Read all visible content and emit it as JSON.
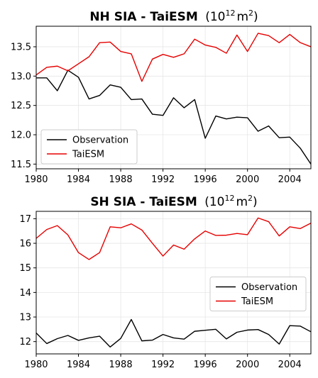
{
  "chart_data": [
    {
      "type": "line",
      "title_main": "NH SIA - TaiESM",
      "title_unit_base": "(10",
      "title_unit_exp": "12",
      "title_unit_rest": "m",
      "title_unit_sq": "2",
      "title_unit_close": ")",
      "x": [
        1980,
        1981,
        1982,
        1983,
        1984,
        1985,
        1986,
        1987,
        1988,
        1989,
        1990,
        1991,
        1992,
        1993,
        1994,
        1995,
        1996,
        1997,
        1998,
        1999,
        2000,
        2001,
        2002,
        2003,
        2004,
        2005,
        2006
      ],
      "xlim": [
        1980,
        2006
      ],
      "ylim": [
        11.42,
        13.85
      ],
      "xticks": [
        1980,
        1984,
        1988,
        1992,
        1996,
        2000,
        2004
      ],
      "yticks": [
        11.5,
        12.0,
        12.5,
        13.0,
        13.5
      ],
      "ytick_labels": [
        "11.5",
        "12.0",
        "12.5",
        "13.0",
        "13.5"
      ],
      "grid": true,
      "legend_position": "lower-left",
      "series": [
        {
          "name": "Observation",
          "color": "#000000",
          "values": [
            12.97,
            12.97,
            12.75,
            13.1,
            12.98,
            12.61,
            12.67,
            12.85,
            12.81,
            12.6,
            12.61,
            12.35,
            12.33,
            12.63,
            12.46,
            12.6,
            11.94,
            12.32,
            12.27,
            12.3,
            12.29,
            12.06,
            12.15,
            11.95,
            11.96,
            11.77,
            11.5
          ]
        },
        {
          "name": "TaiESM",
          "color": "#e60000",
          "values": [
            13.02,
            13.15,
            13.17,
            13.09,
            13.21,
            13.33,
            13.57,
            13.58,
            13.42,
            13.38,
            12.91,
            13.29,
            13.37,
            13.32,
            13.38,
            13.63,
            13.53,
            13.49,
            13.39,
            13.7,
            13.42,
            13.73,
            13.69,
            13.57,
            13.71,
            13.57,
            13.5
          ]
        }
      ]
    },
    {
      "type": "line",
      "title_main": "SH SIA - TaiESM",
      "title_unit_base": "(10",
      "title_unit_exp": "12",
      "title_unit_rest": "m",
      "title_unit_sq": "2",
      "title_unit_close": ")",
      "x": [
        1980,
        1981,
        1982,
        1983,
        1984,
        1985,
        1986,
        1987,
        1988,
        1989,
        1990,
        1991,
        1992,
        1993,
        1994,
        1995,
        1996,
        1997,
        1998,
        1999,
        2000,
        2001,
        2002,
        2003,
        2004,
        2005,
        2006
      ],
      "xlim": [
        1980,
        2006
      ],
      "ylim": [
        11.5,
        17.3
      ],
      "xticks": [
        1980,
        1984,
        1988,
        1992,
        1996,
        2000,
        2004
      ],
      "yticks": [
        12,
        13,
        14,
        15,
        16,
        17
      ],
      "ytick_labels": [
        "12",
        "13",
        "14",
        "15",
        "16",
        "17"
      ],
      "grid": true,
      "legend_position": "center-right",
      "series": [
        {
          "name": "Observation",
          "color": "#000000",
          "values": [
            12.35,
            11.92,
            12.12,
            12.25,
            12.05,
            12.15,
            12.22,
            11.78,
            12.13,
            12.9,
            12.03,
            12.06,
            12.29,
            12.15,
            12.1,
            12.42,
            12.46,
            12.5,
            12.11,
            12.38,
            12.47,
            12.49,
            12.29,
            11.9,
            12.65,
            12.63,
            12.4
          ]
        },
        {
          "name": "TaiESM",
          "color": "#e60000",
          "values": [
            16.2,
            16.56,
            16.72,
            16.34,
            15.62,
            15.34,
            15.62,
            16.67,
            16.63,
            16.79,
            16.54,
            16.0,
            15.48,
            15.93,
            15.76,
            16.18,
            16.5,
            16.32,
            16.33,
            16.4,
            16.35,
            17.03,
            16.88,
            16.3,
            16.67,
            16.6,
            16.82
          ]
        }
      ]
    }
  ]
}
